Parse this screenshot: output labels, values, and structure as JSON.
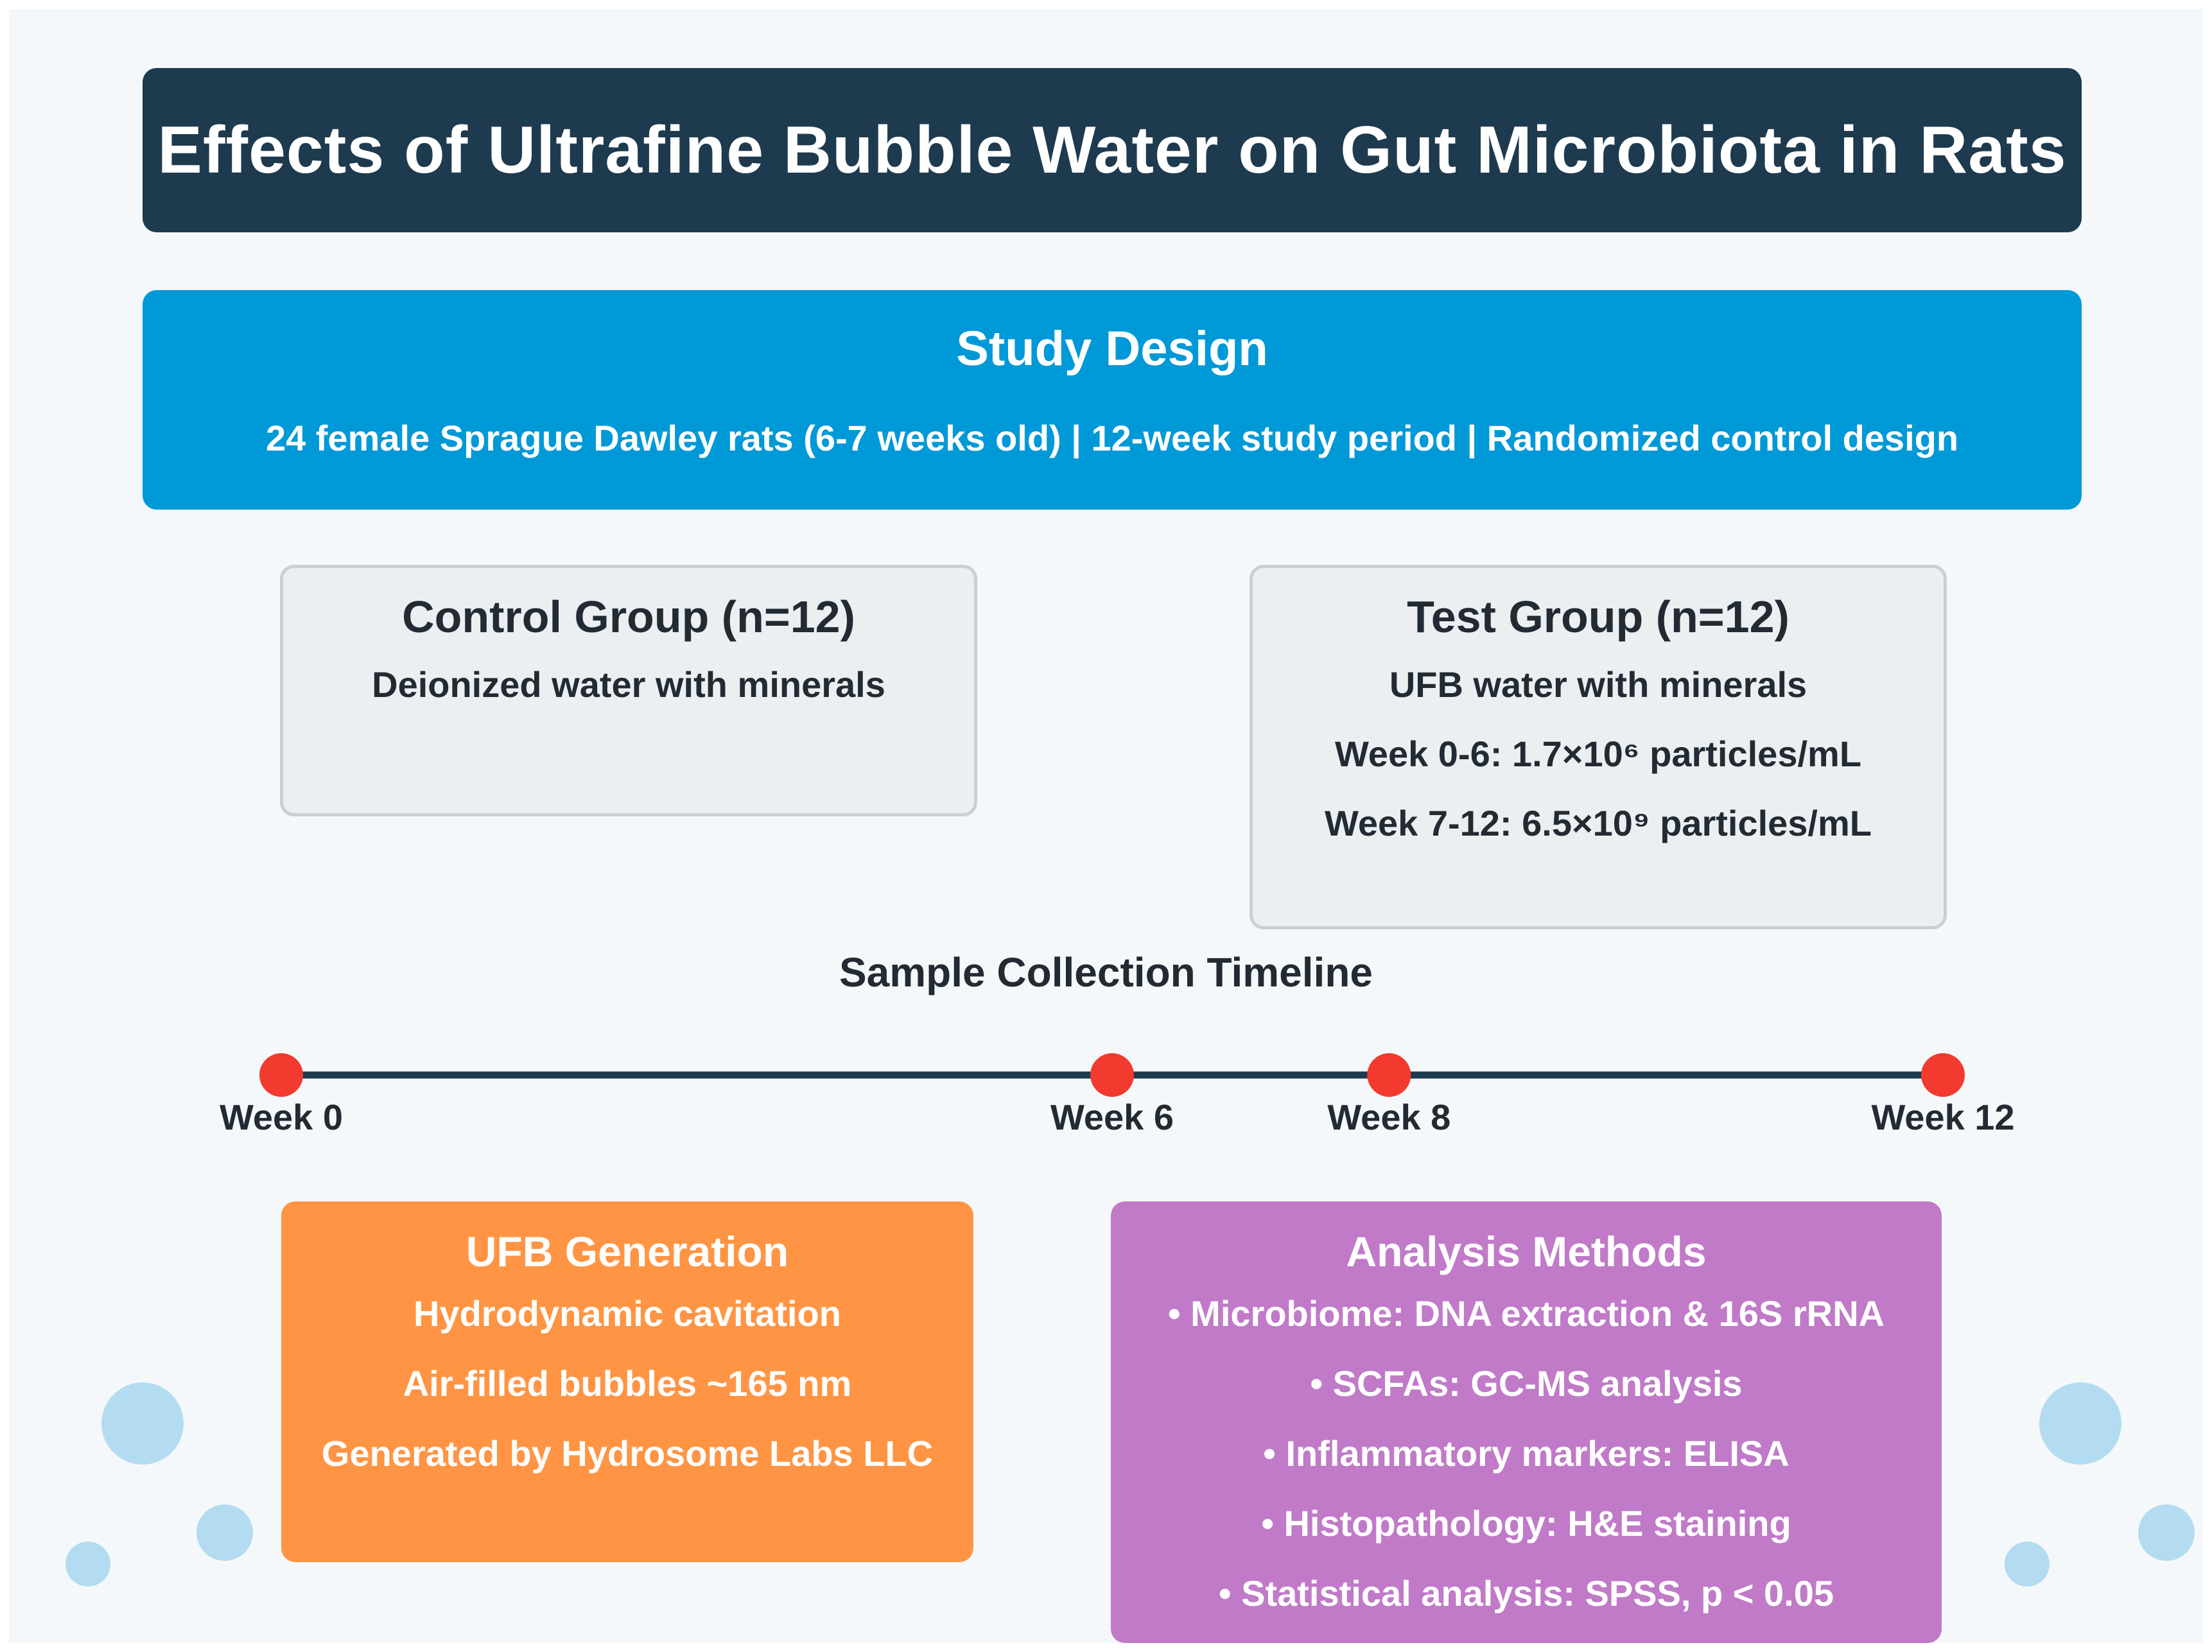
{
  "title": "Effects of Ultrafine Bubble Water on Gut Microbiota in Rats",
  "study_design": {
    "heading": "Study Design",
    "summary": "24 female Sprague Dawley rats (6-7 weeks old) | 12-week study period | Randomized control design"
  },
  "control_group": {
    "heading": "Control Group (n=12)",
    "lines": [
      "Deionized water with minerals"
    ]
  },
  "test_group": {
    "heading": "Test Group (n=12)",
    "lines": [
      "UFB water with minerals",
      "Week 0-6: 1.7×10⁶ particles/mL",
      "Week 7-12: 6.5×10⁹ particles/mL"
    ]
  },
  "timeline": {
    "title": "Sample Collection Timeline",
    "total_weeks": 12,
    "points": [
      {
        "week": 0,
        "label": "Week 0"
      },
      {
        "week": 6,
        "label": "Week 6"
      },
      {
        "week": 8,
        "label": "Week 8"
      },
      {
        "week": 12,
        "label": "Week 12"
      }
    ]
  },
  "ufb_generation": {
    "heading": "UFB Generation",
    "lines": [
      "Hydrodynamic cavitation",
      "Air-filled bubbles ~165 nm",
      "Generated by Hydrosome Labs LLC"
    ]
  },
  "analysis_methods": {
    "heading": "Analysis Methods",
    "lines": [
      "• Microbiome: DNA extraction & 16S rRNA",
      "• SCFAs: GC-MS analysis",
      "• Inflammatory markers: ELISA",
      "• Histopathology: H&E staining",
      "• Statistical analysis: SPSS, p < 0.05"
    ]
  },
  "colors": {
    "title_bg": "#1e3a4f",
    "design_bg": "#0099d8",
    "timeline_dot": "#f23a2e",
    "ufb_bg": "#ff9544",
    "analysis_bg": "#c07ac8",
    "bubble": "#b3dcf1"
  }
}
